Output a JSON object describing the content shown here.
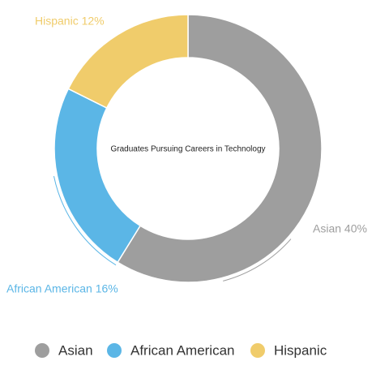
{
  "chart_data": {
    "type": "donut",
    "title": "Graduates Pursuing Careers in Technology",
    "categories": [
      "Asian",
      "African American",
      "Hispanic"
    ],
    "values": [
      40,
      16,
      12
    ],
    "value_labels": [
      "Asian 40%",
      "African American 16%",
      "Hispanic 12%"
    ],
    "colors": [
      "#9e9e9e",
      "#5bb6e6",
      "#f0cc6b"
    ],
    "legend": "bottom"
  }
}
